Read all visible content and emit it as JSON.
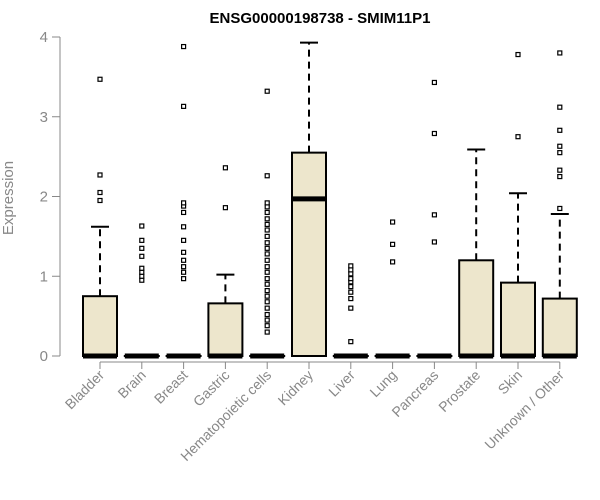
{
  "chart_data": {
    "type": "boxplot",
    "title": "ENSG00000198738 - SMIM11P1",
    "xlabel": "",
    "ylabel": "Expression",
    "ylim": [
      0,
      4
    ],
    "yticks": [
      "0",
      "1",
      "2",
      "3",
      "4"
    ],
    "grid": false,
    "box_color": "#ede6cc",
    "categories": [
      "Bladder",
      "Brain",
      "Breast",
      "Gastric",
      "Hematopoietic cells",
      "Kidney",
      "Liver",
      "Lung",
      "Pancreas",
      "Prostate",
      "Skin",
      "Unknown / Other"
    ],
    "boxes": [
      {
        "q1": 0,
        "median": 0,
        "q3": 0.75,
        "whisker_low": 0,
        "whisker_high": 1.62,
        "outliers": [
          1.95,
          2.05,
          2.27,
          3.47
        ]
      },
      {
        "q1": 0,
        "median": 0,
        "q3": 0,
        "whisker_low": 0,
        "whisker_high": 0,
        "outliers": [
          0.95,
          1.0,
          1.05,
          1.1,
          1.25,
          1.35,
          1.45,
          1.63
        ]
      },
      {
        "q1": 0,
        "median": 0,
        "q3": 0,
        "whisker_low": 0,
        "whisker_high": 0,
        "outliers": [
          0.97,
          1.05,
          1.12,
          1.2,
          1.3,
          1.45,
          1.62,
          1.8,
          1.88,
          1.92,
          3.13,
          3.88
        ]
      },
      {
        "q1": 0,
        "median": 0,
        "q3": 0.66,
        "whisker_low": 0,
        "whisker_high": 1.02,
        "outliers": [
          1.86,
          2.36
        ]
      },
      {
        "q1": 0,
        "median": 0,
        "q3": 0,
        "whisker_low": 0,
        "whisker_high": 0,
        "outliers": [
          0.3,
          0.38,
          0.45,
          0.52,
          0.6,
          0.68,
          0.75,
          0.82,
          0.9,
          0.97,
          1.05,
          1.12,
          1.2,
          1.28,
          1.35,
          1.42,
          1.5,
          1.58,
          1.65,
          1.72,
          1.8,
          1.87,
          1.92,
          2.26,
          3.32
        ]
      },
      {
        "q1": 0,
        "median": 1.97,
        "q3": 2.55,
        "whisker_low": 0,
        "whisker_high": 3.93,
        "outliers": []
      },
      {
        "q1": 0,
        "median": 0,
        "q3": 0,
        "whisker_low": 0,
        "whisker_high": 0,
        "outliers": [
          0.18,
          0.6,
          0.72,
          0.8,
          0.87,
          0.93,
          0.97,
          1.03,
          1.08,
          1.13
        ]
      },
      {
        "q1": 0,
        "median": 0,
        "q3": 0,
        "whisker_low": 0,
        "whisker_high": 0,
        "outliers": [
          1.18,
          1.4,
          1.68
        ]
      },
      {
        "q1": 0,
        "median": 0,
        "q3": 0,
        "whisker_low": 0,
        "whisker_high": 0,
        "outliers": [
          1.43,
          1.77,
          2.79,
          3.43
        ]
      },
      {
        "q1": 0,
        "median": 0,
        "q3": 1.2,
        "whisker_low": 0,
        "whisker_high": 2.59,
        "outliers": []
      },
      {
        "q1": 0,
        "median": 0,
        "q3": 0.92,
        "whisker_low": 0,
        "whisker_high": 2.04,
        "outliers": [
          2.75,
          3.78
        ]
      },
      {
        "q1": 0,
        "median": 0,
        "q3": 0.72,
        "whisker_low": 0,
        "whisker_high": 1.78,
        "outliers": [
          1.85,
          2.25,
          2.33,
          2.55,
          2.63,
          2.83,
          3.12,
          3.8
        ]
      }
    ]
  }
}
